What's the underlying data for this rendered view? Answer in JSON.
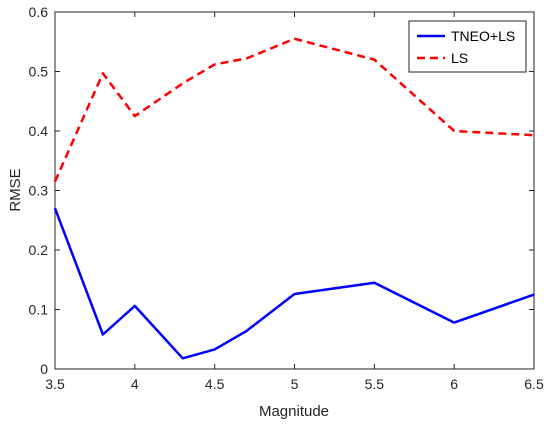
{
  "chart_data": {
    "type": "line",
    "xlabel": "Magnitude",
    "ylabel": "RMSE",
    "xlim": [
      3.5,
      6.5
    ],
    "ylim": [
      0,
      0.6
    ],
    "xticks": [
      "3.5",
      "4",
      "4.5",
      "5",
      "5.5",
      "6",
      "6.5"
    ],
    "yticks": [
      "0",
      "0.1",
      "0.2",
      "0.3",
      "0.4",
      "0.5",
      "0.6"
    ],
    "xtick_values": [
      3.5,
      4,
      4.5,
      5,
      5.5,
      6,
      6.5
    ],
    "ytick_values": [
      0,
      0.1,
      0.2,
      0.3,
      0.4,
      0.5,
      0.6
    ],
    "grid": false,
    "legend_position": "top-right",
    "series": [
      {
        "name": "TNEO+LS",
        "color": "#0000ff",
        "line_style": "solid",
        "x": [
          3.5,
          3.8,
          4.0,
          4.3,
          4.5,
          4.7,
          5.0,
          5.5,
          6.0,
          6.5
        ],
        "y": [
          0.27,
          0.058,
          0.106,
          0.018,
          0.033,
          0.064,
          0.126,
          0.145,
          0.078,
          0.125
        ]
      },
      {
        "name": "LS",
        "color": "#ff0000",
        "line_style": "dashed",
        "x": [
          3.5,
          3.8,
          4.0,
          4.3,
          4.5,
          4.7,
          5.0,
          5.5,
          6.0,
          6.5
        ],
        "y": [
          0.315,
          0.497,
          0.425,
          0.48,
          0.512,
          0.522,
          0.555,
          0.52,
          0.4,
          0.393
        ]
      }
    ]
  }
}
